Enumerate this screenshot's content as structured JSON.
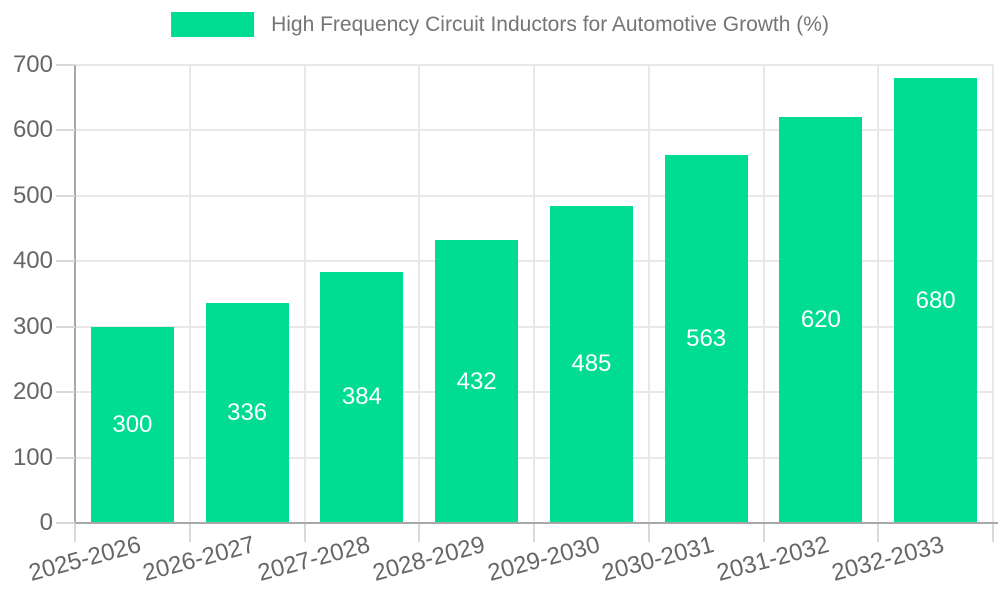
{
  "chart_data": {
    "type": "bar",
    "title": "High Frequency Circuit Inductors for Automotive Growth (%)",
    "legend_label": "High Frequency Circuit Inductors for Automotive Growth (%)",
    "legend_position": "top",
    "categories": [
      "2025-2026",
      "2026-2027",
      "2027-2028",
      "2028-2029",
      "2029-2030",
      "2030-2031",
      "2031-2032",
      "2032-2033"
    ],
    "values": [
      300,
      336,
      384,
      432,
      485,
      563,
      620,
      680
    ],
    "bar_labels": [
      "300",
      "336",
      "384",
      "432",
      "485",
      "563",
      "620",
      "680"
    ],
    "xlabel": "",
    "ylabel": "",
    "ylim": [
      0,
      700
    ],
    "ytick_step": 100,
    "yticks": [
      "0",
      "100",
      "200",
      "300",
      "400",
      "500",
      "600",
      "700"
    ],
    "grid": true,
    "x_label_rotation_deg": -15,
    "colors": {
      "bar": "#00dd92",
      "bar_label": "#ffffff",
      "title": "#757575",
      "tick_label": "#666666",
      "grid": "#e8e8e8",
      "axis": "#a8a8a8",
      "background": "#ffffff"
    }
  }
}
